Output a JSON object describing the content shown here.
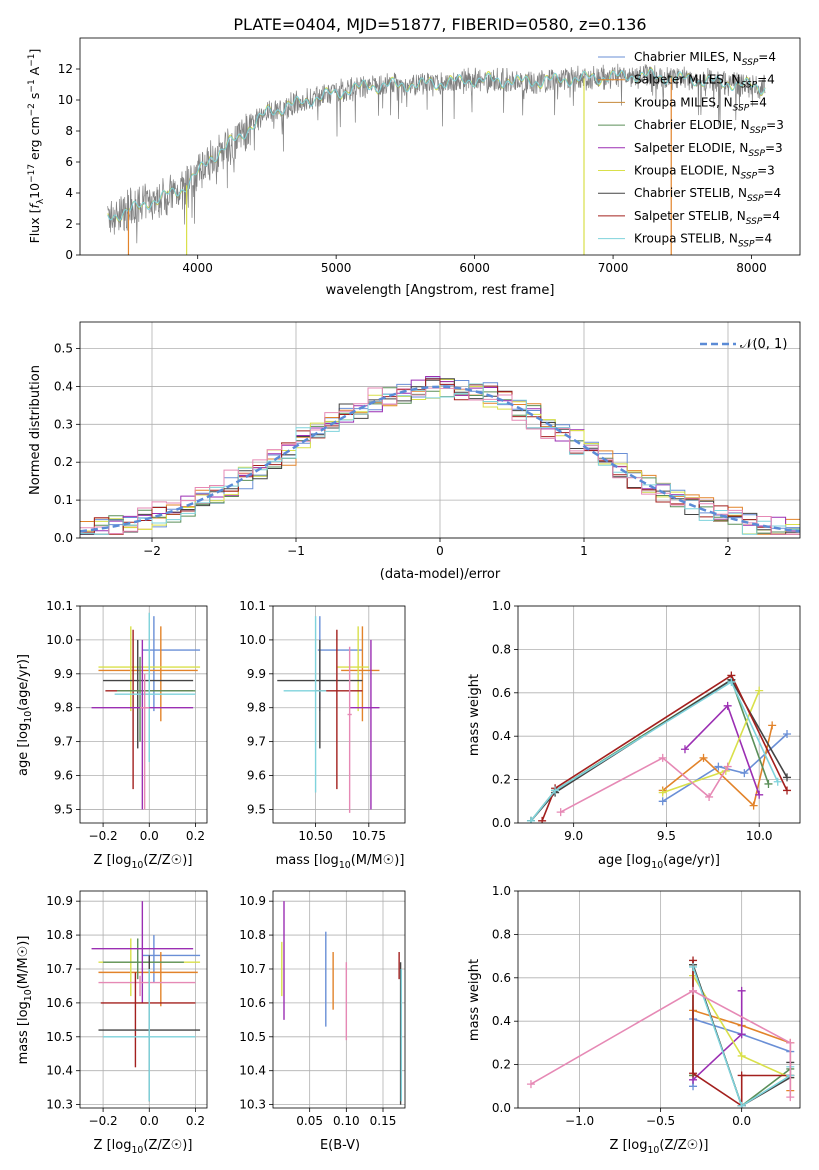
{
  "figure": {
    "title": "PLATE=0404, MJD=51877, FIBERID=0580, z=0.136",
    "model_colors": {
      "Chabrier MILES": "#6a8fd6",
      "Salpeter MILES": "#e2832a",
      "Kroupa MILES": "#c68a3a",
      "Chabrier ELODIE": "#5b8f59",
      "Salpeter ELODIE": "#9b2fb3",
      "Kroupa ELODIE": "#d9e04a",
      "Chabrier STELIB": "#444444",
      "Salpeter STELIB": "#a3201e",
      "Kroupa STELIB": "#7fd3dc",
      "extra": "#e689b5"
    },
    "gaussian_color": "#5b8bd6"
  },
  "chart_data": [
    {
      "id": "spectrum",
      "type": "line",
      "xlabel": "wavelength [Angstrom, rest frame]",
      "ylabel": "Flux [f_λ 10^-17 erg cm^-2 s^-1 A^-1]",
      "xlim": [
        3150,
        8350
      ],
      "ylim": [
        0,
        14
      ],
      "xticks": [
        4000,
        5000,
        6000,
        7000,
        8000
      ],
      "yticks": [
        0,
        2,
        4,
        6,
        8,
        10,
        12
      ],
      "grid": false,
      "legend_position": "right",
      "observed_color": "#808080",
      "observed_wavelength_range": [
        3350,
        8100
      ],
      "continuum_anchor_points": {
        "x": [
          3350,
          3600,
          3900,
          4100,
          4300,
          4500,
          4800,
          5200,
          5600,
          6000,
          6400,
          6800,
          7200,
          7600,
          8100
        ],
        "y": [
          2.4,
          3.2,
          4.3,
          6.3,
          7.6,
          9.2,
          10.0,
          10.9,
          11.0,
          11.3,
          11.2,
          11.4,
          11.6,
          11.3,
          10.8
        ]
      },
      "legend": [
        {
          "label": "Chabrier MILES, N",
          "sub": "SSP",
          "suffix": "=4",
          "color_key": "Chabrier MILES"
        },
        {
          "label": "Salpeter MILES, N",
          "sub": "SSP",
          "suffix": "=4",
          "color_key": "Salpeter MILES"
        },
        {
          "label": "Kroupa MILES, N",
          "sub": "SSP",
          "suffix": "=4",
          "color_key": "Kroupa MILES"
        },
        {
          "label": "Chabrier ELODIE, N",
          "sub": "SSP",
          "suffix": "=3",
          "color_key": "Chabrier ELODIE"
        },
        {
          "label": "Salpeter ELODIE, N",
          "sub": "SSP",
          "suffix": "=3",
          "color_key": "Salpeter ELODIE"
        },
        {
          "label": "Kroupa ELODIE, N",
          "sub": "SSP",
          "suffix": "=3",
          "color_key": "Kroupa ELODIE"
        },
        {
          "label": "Chabrier STELIB, N",
          "sub": "SSP",
          "suffix": "=4",
          "color_key": "Chabrier STELIB"
        },
        {
          "label": "Salpeter STELIB, N",
          "sub": "SSP",
          "suffix": "=4",
          "color_key": "Salpeter STELIB"
        },
        {
          "label": "Kroupa STELIB, N",
          "sub": "SSP",
          "suffix": "=4",
          "color_key": "Kroupa STELIB"
        }
      ],
      "dropout_lines": [
        {
          "x": 3500,
          "color_key": "Salpeter MILES"
        },
        {
          "x": 3920,
          "color_key": "Kroupa ELODIE"
        },
        {
          "x": 6790,
          "color_key": "Kroupa ELODIE"
        },
        {
          "x": 7420,
          "color_key": "Salpeter MILES"
        }
      ]
    },
    {
      "id": "residuals",
      "type": "line",
      "xlabel": "(data-model)/error",
      "ylabel": "Normed distribution",
      "xlim": [
        -2.5,
        2.5
      ],
      "ylim": [
        0,
        0.57
      ],
      "xticks": [
        -2,
        -1,
        0,
        1,
        2
      ],
      "yticks": [
        0.0,
        0.1,
        0.2,
        0.3,
        0.4,
        0.5
      ],
      "grid": true,
      "legend_position": "top-right",
      "gaussian_label": "𝒩(0, 1)",
      "hist_bin_width": 0.1,
      "hist_series_colors": [
        "#6a8fd6",
        "#e2832a",
        "#5b8f59",
        "#9b2fb3",
        "#d9e04a",
        "#444444",
        "#a3201e",
        "#7fd3dc",
        "#e689b5"
      ]
    },
    {
      "id": "age_vs_Z",
      "type": "scatter",
      "xlabel": "Z [log10(Z/Z☉)]",
      "ylabel": "age [log10(age/yr)]",
      "xlim": [
        -0.3,
        0.25
      ],
      "ylim": [
        9.46,
        10.1
      ],
      "xticks": [
        -0.2,
        0.0,
        0.2
      ],
      "yticks": [
        9.5,
        9.6,
        9.7,
        9.8,
        9.9,
        10.0,
        10.1
      ],
      "grid": true,
      "points": [
        {
          "x": 0.02,
          "y": 9.97,
          "xerr": [
            0.05,
            0.2
          ],
          "yerr": [
            0.18,
            0.1
          ],
          "color_key": "Chabrier MILES"
        },
        {
          "x": 0.05,
          "y": 9.91,
          "xerr": [
            0.27,
            0.16
          ],
          "yerr": [
            0.15,
            0.13
          ],
          "color_key": "Salpeter MILES"
        },
        {
          "x": -0.08,
          "y": 9.92,
          "xerr": [
            0.14,
            0.3
          ],
          "yerr": [
            0.13,
            0.12
          ],
          "color_key": "Kroupa ELODIE"
        },
        {
          "x": -0.05,
          "y": 9.88,
          "xerr": [
            0.15,
            0.24
          ],
          "yerr": [
            0.2,
            0.12
          ],
          "color_key": "Chabrier STELIB"
        },
        {
          "x": -0.07,
          "y": 9.85,
          "xerr": [
            0.12,
            0.26
          ],
          "yerr": [
            0.29,
            0.18
          ],
          "color_key": "Salpeter STELIB"
        },
        {
          "x": -0.04,
          "y": 9.85,
          "xerr": [
            0.1,
            0.24
          ],
          "yerr": [
            0.15,
            0.1
          ],
          "color_key": "Chabrier ELODIE"
        },
        {
          "x": 0.0,
          "y": 9.84,
          "xerr": [
            0.15,
            0.2
          ],
          "yerr": [
            0.2,
            0.24
          ],
          "color_key": "Kroupa STELIB"
        },
        {
          "x": -0.03,
          "y": 9.8,
          "xerr": [
            0.22,
            0.22
          ],
          "yerr": [
            0.3,
            0.2
          ],
          "color_key": "Salpeter ELODIE"
        },
        {
          "x": -0.02,
          "y": 9.8,
          "xerr": [
            0.02,
            0.02
          ],
          "yerr": [
            0.3,
            0.1
          ],
          "color_key": "extra"
        }
      ]
    },
    {
      "id": "age_vs_mass",
      "type": "scatter",
      "xlabel": "mass [log10(M/M☉)]",
      "ylabel": "",
      "xlim": [
        10.3,
        10.92
      ],
      "ylim": [
        9.46,
        10.1
      ],
      "xticks": [
        10.5,
        10.75
      ],
      "yticks": [
        9.5,
        9.6,
        9.7,
        9.8,
        9.9,
        10.0,
        10.1
      ],
      "grid": true,
      "points": [
        {
          "x": 10.52,
          "y": 9.97,
          "xerr": [
            0.01,
            0.2
          ],
          "yerr": [
            0.18,
            0.1
          ],
          "color_key": "Chabrier MILES"
        },
        {
          "x": 10.72,
          "y": 9.91,
          "xerr": [
            0.1,
            0.08
          ],
          "yerr": [
            0.15,
            0.13
          ],
          "color_key": "Salpeter MILES"
        },
        {
          "x": 10.7,
          "y": 9.92,
          "xerr": [
            0.1,
            0.05
          ],
          "yerr": [
            0.13,
            0.12
          ],
          "color_key": "Kroupa ELODIE"
        },
        {
          "x": 10.52,
          "y": 9.88,
          "xerr": [
            0.2,
            0.2
          ],
          "yerr": [
            0.2,
            0.12
          ],
          "color_key": "Chabrier STELIB"
        },
        {
          "x": 10.6,
          "y": 9.85,
          "xerr": [
            0.1,
            0.12
          ],
          "yerr": [
            0.29,
            0.18
          ],
          "color_key": "Salpeter STELIB"
        },
        {
          "x": 10.5,
          "y": 9.85,
          "xerr": [
            0.15,
            0.05
          ],
          "yerr": [
            0.3,
            0.22
          ],
          "color_key": "Kroupa STELIB"
        },
        {
          "x": 10.76,
          "y": 9.8,
          "xerr": [
            0.1,
            0.04
          ],
          "yerr": [
            0.3,
            0.2
          ],
          "color_key": "Salpeter ELODIE"
        },
        {
          "x": 10.66,
          "y": 9.78,
          "xerr": [
            0.01,
            0.01
          ],
          "yerr": [
            0.29,
            0.2
          ],
          "color_key": "extra"
        }
      ]
    },
    {
      "id": "mass_weight_vs_age",
      "type": "line",
      "xlabel": "age [log10(age/yr)]",
      "ylabel": "mass weight",
      "xlim": [
        8.7,
        10.22
      ],
      "ylim": [
        0,
        1.0
      ],
      "xticks": [
        9.0,
        9.5,
        10.0
      ],
      "yticks": [
        0.0,
        0.2,
        0.4,
        0.6,
        0.8,
        1.0
      ],
      "grid": true,
      "series": [
        {
          "color_key": "Chabrier MILES",
          "x": [
            9.48,
            9.78,
            9.92,
            10.15
          ],
          "y": [
            0.1,
            0.26,
            0.23,
            0.41
          ]
        },
        {
          "color_key": "Salpeter MILES",
          "x": [
            9.48,
            9.7,
            9.97,
            10.07
          ],
          "y": [
            0.15,
            0.3,
            0.08,
            0.45
          ]
        },
        {
          "color_key": "Chabrier ELODIE",
          "x": [
            8.77,
            8.9,
            9.85,
            10.05
          ],
          "y": [
            0.01,
            0.15,
            0.66,
            0.18
          ]
        },
        {
          "color_key": "Salpeter ELODIE",
          "x": [
            9.6,
            9.83,
            10.0
          ],
          "y": [
            0.34,
            0.54,
            0.13
          ]
        },
        {
          "color_key": "Kroupa ELODIE",
          "x": [
            9.48,
            9.82,
            10.0
          ],
          "y": [
            0.14,
            0.24,
            0.61
          ]
        },
        {
          "color_key": "Chabrier STELIB",
          "x": [
            8.77,
            8.9,
            9.85,
            10.15
          ],
          "y": [
            0.01,
            0.14,
            0.66,
            0.21
          ]
        },
        {
          "color_key": "Salpeter STELIB",
          "x": [
            8.83,
            8.9,
            9.85,
            10.15
          ],
          "y": [
            0.01,
            0.16,
            0.68,
            0.15
          ]
        },
        {
          "color_key": "Kroupa STELIB",
          "x": [
            8.77,
            8.9,
            9.85,
            10.1
          ],
          "y": [
            0.01,
            0.15,
            0.65,
            0.19
          ]
        },
        {
          "color_key": "extra",
          "x": [
            8.93,
            9.48,
            9.73,
            9.83
          ],
          "y": [
            0.05,
            0.3,
            0.12,
            0.26
          ]
        }
      ]
    },
    {
      "id": "mass_vs_Z",
      "type": "scatter",
      "xlabel": "Z [log10(Z/Z☉)]",
      "ylabel": "mass [log10(M/M☉)]",
      "xlim": [
        -0.3,
        0.25
      ],
      "ylim": [
        10.29,
        10.93
      ],
      "xticks": [
        -0.2,
        0.0,
        0.2
      ],
      "yticks": [
        10.3,
        10.4,
        10.5,
        10.6,
        10.7,
        10.8,
        10.9
      ],
      "grid": true,
      "points": [
        {
          "x": 0.02,
          "y": 10.74,
          "xerr": [
            0.05,
            0.2
          ],
          "yerr": [
            0.08,
            0.06
          ],
          "color_key": "Chabrier MILES"
        },
        {
          "x": 0.05,
          "y": 10.69,
          "xerr": [
            0.27,
            0.16
          ],
          "yerr": [
            0.1,
            0.06
          ],
          "color_key": "Salpeter MILES"
        },
        {
          "x": -0.08,
          "y": 10.72,
          "xerr": [
            0.14,
            0.3
          ],
          "yerr": [
            0.1,
            0.07
          ],
          "color_key": "Kroupa ELODIE"
        },
        {
          "x": -0.05,
          "y": 10.72,
          "xerr": [
            0.15,
            0.2
          ],
          "yerr": [
            0.05,
            0.07
          ],
          "color_key": "Chabrier ELODIE"
        },
        {
          "x": -0.03,
          "y": 10.76,
          "xerr": [
            0.22,
            0.22
          ],
          "yerr": [
            0.16,
            0.14
          ],
          "color_key": "Salpeter ELODIE"
        },
        {
          "x": -0.04,
          "y": 10.66,
          "xerr": [
            0.18,
            0.24
          ],
          "yerr": [
            0.04,
            0.02
          ],
          "color_key": "extra"
        },
        {
          "x": -0.06,
          "y": 10.6,
          "xerr": [
            0.15,
            0.26
          ],
          "yerr": [
            0.19,
            0.09
          ],
          "color_key": "Salpeter STELIB"
        },
        {
          "x": 0.0,
          "y": 10.52,
          "xerr": [
            0.22,
            0.22
          ],
          "yerr": [
            0.21,
            0.22
          ],
          "color_key": "Chabrier STELIB"
        },
        {
          "x": 0.0,
          "y": 10.5,
          "xerr": [
            0.2,
            0.2
          ],
          "yerr": [
            0.19,
            0.2
          ],
          "color_key": "Kroupa STELIB"
        }
      ]
    },
    {
      "id": "mass_vs_ebv",
      "type": "scatter",
      "xlabel": "E(B-V)",
      "ylabel": "",
      "xlim": [
        0.0,
        0.18
      ],
      "ylim": [
        10.29,
        10.93
      ],
      "xticks": [
        0.05,
        0.1,
        0.15
      ],
      "yticks": [
        10.3,
        10.4,
        10.5,
        10.6,
        10.7,
        10.8,
        10.9
      ],
      "grid": true,
      "points": [
        {
          "x": 0.012,
          "y": 10.68,
          "yerr": [
            0.06,
            0.1
          ],
          "color_key": "Kroupa ELODIE"
        },
        {
          "x": 0.015,
          "y": 10.72,
          "yerr": [
            0.17,
            0.18
          ],
          "color_key": "Salpeter ELODIE"
        },
        {
          "x": 0.072,
          "y": 10.69,
          "yerr": [
            0.16,
            0.12
          ],
          "color_key": "Chabrier MILES"
        },
        {
          "x": 0.082,
          "y": 10.68,
          "yerr": [
            0.1,
            0.07
          ],
          "color_key": "Salpeter MILES"
        },
        {
          "x": 0.1,
          "y": 10.62,
          "yerr": [
            0.13,
            0.1
          ],
          "color_key": "extra"
        },
        {
          "x": 0.172,
          "y": 10.72,
          "yerr": [
            0.05,
            0.03
          ],
          "color_key": "Salpeter STELIB"
        },
        {
          "x": 0.174,
          "y": 10.5,
          "yerr": [
            0.2,
            0.22
          ],
          "color_key": "Chabrier STELIB"
        },
        {
          "x": 0.175,
          "y": 10.5,
          "yerr": [
            0.19,
            0.2
          ],
          "color_key": "Kroupa STELIB"
        }
      ]
    },
    {
      "id": "mass_weight_vs_Z",
      "type": "line",
      "xlabel": "Z [log10(Z/Z☉)]",
      "ylabel": "mass weight",
      "xlim": [
        -1.38,
        0.36
      ],
      "ylim": [
        0,
        1.0
      ],
      "xticks": [
        -1.0,
        -0.5,
        0.0
      ],
      "yticks": [
        0.0,
        0.2,
        0.4,
        0.6,
        0.8,
        1.0
      ],
      "grid": true,
      "series": [
        {
          "color_key": "Chabrier MILES",
          "x": [
            -0.3,
            -0.3,
            0.0,
            0.3
          ],
          "y": [
            0.1,
            0.41,
            0.34,
            0.26
          ]
        },
        {
          "color_key": "Salpeter MILES",
          "x": [
            -0.3,
            -0.3,
            0.0,
            0.3,
            0.3
          ],
          "y": [
            0.15,
            0.45,
            0.38,
            0.3,
            0.08
          ]
        },
        {
          "color_key": "Chabrier ELODIE",
          "x": [
            -0.3,
            -0.3,
            0.0,
            0.3
          ],
          "y": [
            0.15,
            0.66,
            0.01,
            0.18
          ]
        },
        {
          "color_key": "Salpeter ELODIE",
          "x": [
            -0.3,
            0.0,
            0.0
          ],
          "y": [
            0.13,
            0.34,
            0.54
          ]
        },
        {
          "color_key": "Kroupa ELODIE",
          "x": [
            -0.3,
            0.0,
            0.3
          ],
          "y": [
            0.61,
            0.24,
            0.14
          ]
        },
        {
          "color_key": "Chabrier STELIB",
          "x": [
            -0.3,
            0.0,
            0.3,
            0.3
          ],
          "y": [
            0.66,
            0.01,
            0.14,
            0.21
          ]
        },
        {
          "color_key": "Salpeter STELIB",
          "x": [
            -0.3,
            -0.3,
            0.0,
            0.0,
            0.3
          ],
          "y": [
            0.68,
            0.16,
            0.01,
            0.15,
            0.15
          ]
        },
        {
          "color_key": "Kroupa STELIB",
          "x": [
            -0.3,
            0.0,
            0.3,
            0.3
          ],
          "y": [
            0.65,
            0.01,
            0.15,
            0.19
          ]
        },
        {
          "color_key": "extra",
          "x": [
            -1.3,
            -0.3,
            0.3,
            0.3
          ],
          "y": [
            0.11,
            0.54,
            0.3,
            0.05
          ]
        }
      ]
    }
  ]
}
